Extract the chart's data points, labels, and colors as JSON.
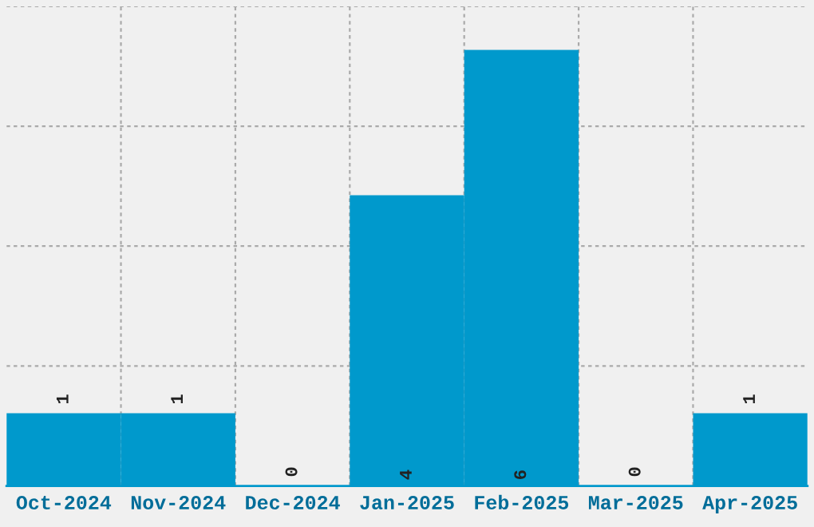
{
  "chart_data": {
    "type": "bar",
    "categories": [
      "Oct-2024",
      "Nov-2024",
      "Dec-2024",
      "Jan-2025",
      "Feb-2025",
      "Mar-2025",
      "Apr-2025"
    ],
    "values": [
      1,
      1,
      0,
      4,
      6,
      0,
      1
    ],
    "color": "#0099cc",
    "ylim": [
      0,
      6.6
    ],
    "yticks": [
      {
        "value": 1.65,
        "label": null
      },
      {
        "value": 3.3,
        "label": null
      },
      {
        "value": 4.95,
        "label": null
      },
      {
        "value": 6.6,
        "label": null
      }
    ],
    "tick_labels": "x",
    "grid": true,
    "data_labels": true
  }
}
